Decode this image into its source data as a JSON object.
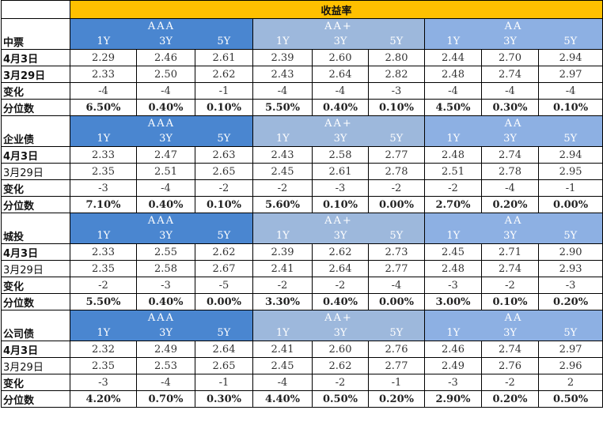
{
  "title": "收益率",
  "groups": [
    "AAA",
    "AA+",
    "AA"
  ],
  "tenors": [
    "1Y",
    "3Y",
    "5Y"
  ],
  "row_labels": {
    "d1": "4月3日",
    "d2": "3月29日",
    "chg": "变化",
    "pct": "分位数"
  },
  "sections": [
    {
      "name": "中票",
      "d1": [
        "2.29",
        "2.46",
        "2.61",
        "2.39",
        "2.60",
        "2.80",
        "2.44",
        "2.70",
        "2.94"
      ],
      "d2": [
        "2.33",
        "2.50",
        "2.62",
        "2.43",
        "2.64",
        "2.82",
        "2.48",
        "2.74",
        "2.97"
      ],
      "chg": [
        "-4",
        "-4",
        "-1",
        "-4",
        "-4",
        "-3",
        "-4",
        "-4",
        "-4"
      ],
      "pct": [
        "6.50%",
        "0.40%",
        "0.10%",
        "5.50%",
        "0.40%",
        "0.10%",
        "4.50%",
        "0.30%",
        "0.10%"
      ]
    },
    {
      "name": "企业债",
      "d1": [
        "2.33",
        "2.47",
        "2.63",
        "2.43",
        "2.58",
        "2.77",
        "2.48",
        "2.74",
        "2.94"
      ],
      "d2": [
        "2.35",
        "2.51",
        "2.65",
        "2.45",
        "2.61",
        "2.78",
        "2.51",
        "2.78",
        "2.95"
      ],
      "chg": [
        "-3",
        "-4",
        "-2",
        "-2",
        "-3",
        "-2",
        "-2",
        "-4",
        "-1"
      ],
      "pct": [
        "7.10%",
        "0.40%",
        "0.10%",
        "5.60%",
        "0.10%",
        "0.00%",
        "2.70%",
        "0.20%",
        "0.00%"
      ]
    },
    {
      "name": "城投",
      "d1": [
        "2.33",
        "2.55",
        "2.62",
        "2.39",
        "2.62",
        "2.73",
        "2.45",
        "2.71",
        "2.90"
      ],
      "d2": [
        "2.35",
        "2.58",
        "2.67",
        "2.41",
        "2.64",
        "2.77",
        "2.48",
        "2.74",
        "2.93"
      ],
      "chg": [
        "-2",
        "-3",
        "-5",
        "-2",
        "-2",
        "-4",
        "-3",
        "-2",
        "-3"
      ],
      "pct": [
        "5.50%",
        "0.40%",
        "0.00%",
        "3.30%",
        "0.40%",
        "0.00%",
        "3.00%",
        "0.10%",
        "0.20%"
      ]
    },
    {
      "name": "公司债",
      "d1": [
        "2.32",
        "2.49",
        "2.64",
        "2.41",
        "2.60",
        "2.76",
        "2.46",
        "2.74",
        "2.97"
      ],
      "d2": [
        "2.35",
        "2.53",
        "2.65",
        "2.45",
        "2.62",
        "2.77",
        "2.49",
        "2.76",
        "2.96"
      ],
      "chg": [
        "-3",
        "-4",
        "-1",
        "-4",
        "-2",
        "-1",
        "-3",
        "-2",
        "2"
      ],
      "pct": [
        "4.20%",
        "0.70%",
        "0.30%",
        "4.40%",
        "0.50%",
        "0.20%",
        "2.90%",
        "0.20%",
        "0.50%"
      ]
    }
  ],
  "colors": {
    "title_bg": "#ffc000",
    "aaa_bg": "#4a86d0",
    "aaplus_bg": "#9db8dc",
    "aa_bg": "#8db0e3"
  }
}
